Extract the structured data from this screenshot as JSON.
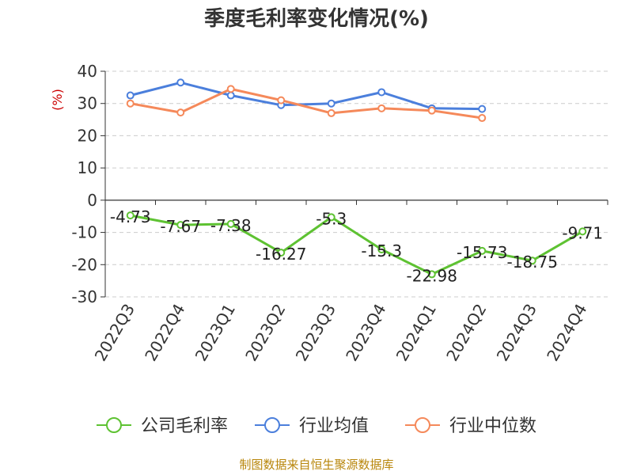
{
  "chart_data": {
    "type": "line",
    "title": "季度毛利率变化情况(%)",
    "ylabel": "(%)",
    "categories": [
      "2022Q3",
      "2022Q4",
      "2023Q1",
      "2023Q2",
      "2023Q3",
      "2023Q4",
      "2024Q1",
      "2024Q2",
      "2024Q3",
      "2024Q4"
    ],
    "ylim": [
      -30,
      40
    ],
    "yticks": [
      40,
      30,
      20,
      10,
      0,
      -10,
      -20,
      -30
    ],
    "grid": true,
    "legend_position": "bottom",
    "series": [
      {
        "name": "公司毛利率",
        "color": "#5ec232",
        "values": [
          -4.73,
          -7.67,
          -7.38,
          -16.27,
          -5.3,
          -15.3,
          -22.98,
          -15.73,
          -18.75,
          -9.71
        ],
        "labels": [
          "-4.73",
          "-7.67",
          "-7.38",
          "-16.27",
          "-5.3",
          "-15.3",
          "-22.98",
          "-15.73",
          "-18.75",
          "-9.71"
        ]
      },
      {
        "name": "行业均值",
        "color": "#4b7fdc",
        "values": [
          32.5,
          36.5,
          32.5,
          29.5,
          30.0,
          33.5,
          28.5,
          28.3,
          null,
          null
        ]
      },
      {
        "name": "行业中位数",
        "color": "#f5895a",
        "values": [
          30.0,
          27.2,
          34.5,
          31.0,
          27.0,
          28.5,
          27.8,
          25.5,
          null,
          null
        ]
      }
    ]
  },
  "source": "制图数据来自恒生聚源数据库"
}
